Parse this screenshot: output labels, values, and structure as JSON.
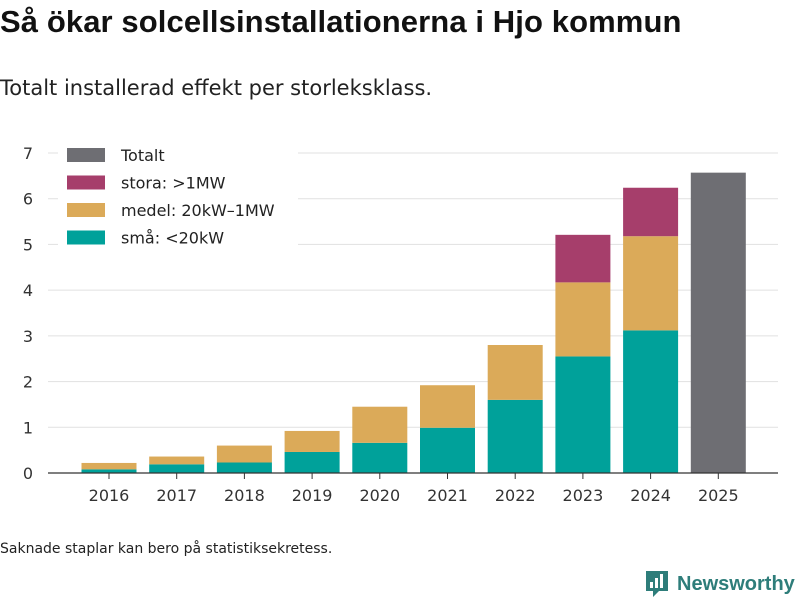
{
  "title": "Så ökar solcellsinstallationerna i Hjo kommun",
  "subtitle": "Totalt installerad effekt per storleksklass.",
  "note": "Saknade staplar kan bero på statistiksekretess.",
  "brand": {
    "name": "Newsworthy",
    "icon": "newsworthy-logo-icon",
    "color": "#2e7d7a"
  },
  "chart_data": {
    "type": "bar",
    "stacked": true,
    "categories": [
      "2016",
      "2017",
      "2018",
      "2019",
      "2020",
      "2021",
      "2022",
      "2023",
      "2024",
      "2025"
    ],
    "series": [
      {
        "name": "små: <20kW",
        "color": "#00a19a",
        "values": [
          0.08,
          0.19,
          0.23,
          0.46,
          0.66,
          0.99,
          1.6,
          2.55,
          3.12,
          null
        ]
      },
      {
        "name": "medel: 20kW–1MW",
        "color": "#dbaa59",
        "values": [
          0.14,
          0.17,
          0.37,
          0.46,
          0.79,
          0.93,
          1.2,
          1.62,
          2.06,
          null
        ]
      },
      {
        "name": "stora: >1MW",
        "color": "#a63e6b",
        "values": [
          null,
          null,
          null,
          null,
          null,
          null,
          null,
          1.04,
          1.06,
          null
        ]
      },
      {
        "name": "Totalt",
        "color": "#6e6e73",
        "values": [
          null,
          null,
          null,
          null,
          null,
          null,
          null,
          null,
          null,
          6.57
        ]
      }
    ],
    "legend_order": [
      "Totalt",
      "stora: >1MW",
      "medel: 20kW–1MW",
      "små: <20kW"
    ],
    "legend_position": "top-left",
    "yticks": [
      0,
      1,
      2,
      3,
      4,
      5,
      6,
      7
    ],
    "ylim": [
      0,
      7
    ],
    "xlabel": "",
    "ylabel": "",
    "grid": true
  }
}
